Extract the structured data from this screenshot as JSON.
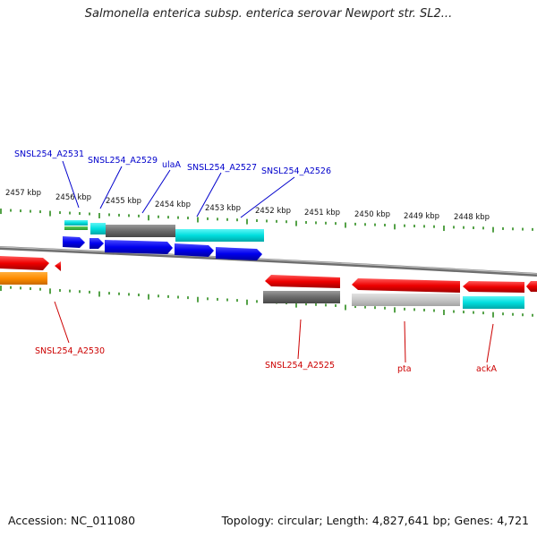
{
  "title": "Salmonella enterica subsp. enterica serovar Newport str. SL2...",
  "colors": {
    "label_top": "#0000cc",
    "label_bottom": "#cc0000",
    "tick": "#2a8a1a",
    "backbone": "#8c8c8c"
  },
  "kbp_labels": [
    "2457 kbp",
    "2456 kbp",
    "2455 kbp",
    "2454 kbp",
    "2453 kbp",
    "2452 kbp",
    "2451 kbp",
    "2450 kbp",
    "2449 kbp",
    "2448 kbp"
  ],
  "top_labels": [
    "SNSL254_A2531",
    "SNSL254_A2529",
    "ulaA",
    "SNSL254_A2527",
    "SNSL254_A2526"
  ],
  "bottom_labels": [
    "SNSL254_A2530",
    "SNSL254_A2525",
    "pta",
    "ackA"
  ],
  "footer": {
    "accession": "Accession: NC_011080",
    "summary": "Topology: circular; Length: 4,827,641 bp; Genes: 4,721"
  }
}
